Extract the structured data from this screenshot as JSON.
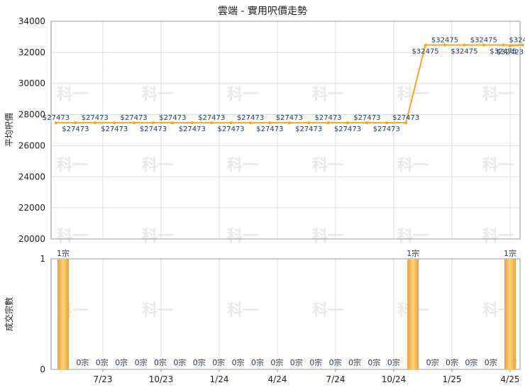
{
  "chart_data": [
    {
      "type": "line",
      "title": "雲端 - 實用呎價走勢",
      "ylabel": "平均呎價",
      "ylim": [
        20000,
        34000
      ],
      "yticks": [
        20000,
        22000,
        24000,
        26000,
        28000,
        30000,
        32000,
        34000
      ],
      "xticks": [
        "7/23",
        "10/23",
        "1/24",
        "4/24",
        "7/24",
        "10/24",
        "1/25",
        "4/25"
      ],
      "grid": true,
      "color": "#f5a623",
      "values": [
        27473,
        27473,
        27473,
        27473,
        27473,
        27473,
        27473,
        27473,
        27473,
        27473,
        27473,
        27473,
        27473,
        27473,
        27473,
        27473,
        27473,
        27473,
        27473,
        32475,
        32475,
        32475,
        32475,
        32475,
        32475,
        32423
      ],
      "labels": [
        "$27473",
        "$27473",
        "$27473",
        "$27473",
        "$27473",
        "$27473",
        "$27473",
        "$27473",
        "$27473",
        "$27473",
        "$27473",
        "$27473",
        "$27473",
        "$27473",
        "$27473",
        "$27473",
        "$27473",
        "$27473",
        "$27473",
        "$32475",
        "$32475",
        "$32475",
        "$32475",
        "$32475",
        "$32475",
        "$32423"
      ]
    },
    {
      "type": "bar",
      "ylabel": "成交宗數",
      "ylim": [
        0,
        1
      ],
      "yticks": [
        0,
        1
      ],
      "values": [
        1,
        0,
        0,
        0,
        0,
        0,
        0,
        0,
        0,
        0,
        0,
        0,
        0,
        0,
        0,
        0,
        0,
        0,
        1,
        0,
        0,
        0,
        0,
        0,
        1
      ],
      "labels": [
        "1宗",
        "0宗",
        "0宗",
        "0宗",
        "0宗",
        "0宗",
        "0宗",
        "0宗",
        "0宗",
        "0宗",
        "0宗",
        "0宗",
        "0宗",
        "0宗",
        "0宗",
        "0宗",
        "0宗",
        "0宗",
        "1宗",
        "0宗",
        "0宗",
        "0宗",
        "0宗",
        "0宗",
        "1宗"
      ]
    }
  ],
  "watermark": "科一"
}
